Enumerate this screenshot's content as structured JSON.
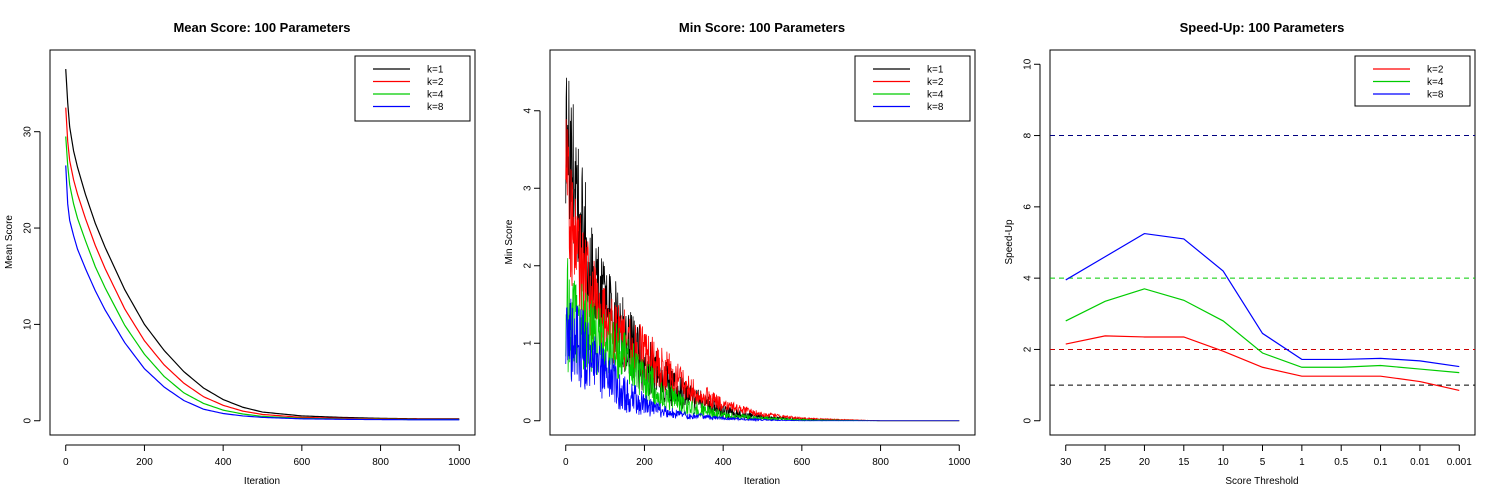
{
  "chart_data": [
    {
      "type": "line",
      "title": "Mean Score: 100 Parameters",
      "xlabel": "Iteration",
      "ylabel": "Mean Score",
      "xlim": [
        0,
        1000
      ],
      "ylim": [
        0,
        37
      ],
      "x_ticks": [
        0,
        200,
        400,
        600,
        800,
        1000
      ],
      "y_ticks": [
        0,
        10,
        20,
        30
      ],
      "legend_position": "top-right",
      "series": [
        {
          "name": "k=1",
          "color": "#000000",
          "x": [
            0,
            5,
            10,
            20,
            30,
            50,
            75,
            100,
            150,
            200,
            250,
            300,
            350,
            400,
            450,
            500,
            600,
            700,
            800,
            900,
            1000
          ],
          "values": [
            36.5,
            33,
            30.5,
            28,
            26.3,
            23.5,
            20.5,
            18,
            13.6,
            10,
            7.3,
            5.1,
            3.4,
            2.2,
            1.4,
            0.9,
            0.5,
            0.35,
            0.25,
            0.2,
            0.2
          ]
        },
        {
          "name": "k=2",
          "color": "#ff0000",
          "x": [
            0,
            5,
            10,
            20,
            30,
            50,
            75,
            100,
            150,
            200,
            250,
            300,
            350,
            400,
            450,
            500,
            600,
            700,
            800,
            900,
            1000
          ],
          "values": [
            32.5,
            29,
            27,
            25,
            23.5,
            21,
            18.2,
            15.8,
            11.6,
            8.3,
            5.8,
            3.9,
            2.5,
            1.6,
            1.0,
            0.65,
            0.35,
            0.25,
            0.2,
            0.15,
            0.15
          ]
        },
        {
          "name": "k=4",
          "color": "#00cc00",
          "x": [
            0,
            5,
            10,
            20,
            30,
            50,
            75,
            100,
            150,
            200,
            250,
            300,
            350,
            400,
            450,
            500,
            600,
            700,
            800,
            900,
            1000
          ],
          "values": [
            29.5,
            26.5,
            24.5,
            22.5,
            21,
            18.7,
            16,
            13.8,
            9.9,
            6.9,
            4.6,
            2.9,
            1.8,
            1.1,
            0.7,
            0.45,
            0.25,
            0.18,
            0.15,
            0.12,
            0.12
          ]
        },
        {
          "name": "k=8",
          "color": "#0000ff",
          "x": [
            0,
            5,
            10,
            20,
            30,
            50,
            75,
            100,
            150,
            200,
            250,
            300,
            350,
            400,
            450,
            500,
            600,
            700,
            800,
            900,
            1000
          ],
          "values": [
            26.5,
            22.5,
            20.8,
            19.2,
            17.8,
            15.8,
            13.5,
            11.5,
            8.1,
            5.4,
            3.5,
            2.1,
            1.2,
            0.75,
            0.5,
            0.35,
            0.2,
            0.15,
            0.12,
            0.1,
            0.1
          ]
        }
      ]
    },
    {
      "type": "line",
      "title": "Min Score: 100 Parameters",
      "xlabel": "Iteration",
      "ylabel": "Min Score",
      "xlim": [
        0,
        1000
      ],
      "ylim": [
        0,
        4.6
      ],
      "x_ticks": [
        0,
        200,
        400,
        600,
        800,
        1000
      ],
      "y_ticks": [
        0,
        1,
        2,
        3,
        4
      ],
      "legend_position": "top-right",
      "series": [
        {
          "name": "k=1",
          "color": "#000000",
          "x": [
            0,
            10,
            25,
            50,
            75,
            100,
            150,
            200,
            250,
            300,
            400,
            500,
            600,
            800,
            1000
          ],
          "values": [
            3.6,
            3.5,
            3.0,
            2.3,
            1.8,
            1.5,
            1.05,
            0.75,
            0.5,
            0.35,
            0.12,
            0.04,
            0.02,
            0.0,
            0.0
          ],
          "noise": [
            0.9,
            1.0,
            0.9,
            0.8,
            0.7,
            0.6,
            0.5,
            0.4,
            0.3,
            0.2,
            0.08,
            0.03,
            0.01,
            0.0,
            0.0
          ]
        },
        {
          "name": "k=2",
          "color": "#ff0000",
          "x": [
            0,
            10,
            25,
            50,
            75,
            100,
            150,
            200,
            250,
            300,
            400,
            500,
            600,
            800,
            1000
          ],
          "values": [
            3.8,
            2.7,
            2.2,
            1.8,
            1.5,
            1.3,
            1.05,
            0.85,
            0.65,
            0.45,
            0.2,
            0.08,
            0.03,
            0.0,
            0.0
          ],
          "noise": [
            0.8,
            0.8,
            0.7,
            0.6,
            0.55,
            0.5,
            0.4,
            0.35,
            0.3,
            0.2,
            0.08,
            0.03,
            0.01,
            0.0,
            0.0
          ]
        },
        {
          "name": "k=4",
          "color": "#00cc00",
          "x": [
            0,
            10,
            25,
            50,
            75,
            100,
            150,
            200,
            250,
            300,
            400,
            500,
            600,
            800,
            1000
          ],
          "values": [
            1.5,
            1.2,
            1.2,
            1.2,
            1.1,
            1.0,
            0.8,
            0.55,
            0.35,
            0.2,
            0.07,
            0.03,
            0.01,
            0.0,
            0.0
          ],
          "noise": [
            0.8,
            0.7,
            0.6,
            0.55,
            0.5,
            0.45,
            0.35,
            0.3,
            0.2,
            0.12,
            0.05,
            0.02,
            0.01,
            0.0,
            0.0
          ]
        },
        {
          "name": "k=8",
          "color": "#0000ff",
          "x": [
            0,
            10,
            25,
            50,
            75,
            100,
            150,
            200,
            250,
            300,
            400,
            500,
            600,
            800,
            1000
          ],
          "values": [
            1.3,
            1.1,
            1.0,
            0.9,
            0.75,
            0.6,
            0.35,
            0.2,
            0.12,
            0.07,
            0.03,
            0.01,
            0.0,
            0.0,
            0.0
          ],
          "noise": [
            0.7,
            0.6,
            0.55,
            0.5,
            0.4,
            0.35,
            0.25,
            0.15,
            0.08,
            0.05,
            0.02,
            0.01,
            0.0,
            0.0,
            0.0
          ]
        }
      ]
    },
    {
      "type": "line",
      "title": "Speed-Up: 100 Parameters",
      "xlabel": "Score Threshold",
      "ylabel": "Speed-Up",
      "ylim": [
        0,
        10
      ],
      "categories": [
        "30",
        "25",
        "20",
        "15",
        "10",
        "5",
        "1",
        "0.5",
        "0.1",
        "0.01",
        "0.001"
      ],
      "y_ticks": [
        0,
        2,
        4,
        6,
        8,
        10
      ],
      "legend_position": "top-right",
      "reference_lines": [
        {
          "value": 8,
          "color": "#000080"
        },
        {
          "value": 4,
          "color": "#00cc00"
        },
        {
          "value": 2,
          "color": "#cc0000"
        },
        {
          "value": 1,
          "color": "#000000"
        }
      ],
      "series": [
        {
          "name": "k=2",
          "color": "#ff0000",
          "values": [
            2.15,
            2.38,
            2.35,
            2.35,
            1.95,
            1.5,
            1.25,
            1.25,
            1.25,
            1.1,
            0.85
          ]
        },
        {
          "name": "k=4",
          "color": "#00cc00",
          "values": [
            2.8,
            3.35,
            3.7,
            3.38,
            2.8,
            1.9,
            1.5,
            1.5,
            1.55,
            1.45,
            1.35
          ]
        },
        {
          "name": "k=8",
          "color": "#0000ff",
          "values": [
            3.95,
            4.6,
            5.25,
            5.1,
            4.2,
            2.45,
            1.72,
            1.72,
            1.75,
            1.68,
            1.52
          ]
        }
      ]
    }
  ]
}
